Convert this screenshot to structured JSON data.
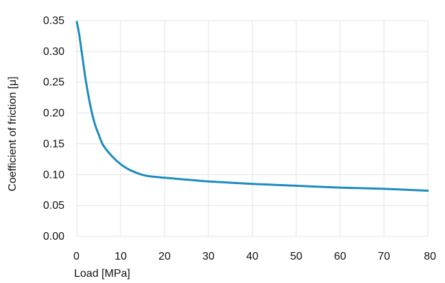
{
  "chart_data": {
    "type": "line",
    "xlabel": "Load [MPa]",
    "ylabel": "Coefficient of friction [μ]",
    "xlim": [
      0,
      80
    ],
    "ylim": [
      0,
      0.35
    ],
    "xticks": [
      0,
      10,
      20,
      30,
      40,
      50,
      60,
      70,
      80
    ],
    "xtick_labels": [
      "0",
      "10",
      "20",
      "30",
      "40",
      "50",
      "60",
      "70",
      "80"
    ],
    "yticks": [
      0,
      0.05,
      0.1,
      0.15,
      0.2,
      0.25,
      0.3,
      0.35
    ],
    "ytick_labels": [
      "0.00",
      "0.05",
      "0.10",
      "0.15",
      "0.20",
      "0.25",
      "0.30",
      "0.35"
    ],
    "grid": true,
    "legend": "none",
    "series": [
      {
        "color": "#1a8bbf",
        "x": [
          0,
          0.5,
          1,
          1.5,
          2,
          3,
          4,
          5,
          6,
          8,
          10,
          12,
          14,
          16,
          20,
          25,
          30,
          35,
          40,
          50,
          60,
          70,
          80
        ],
        "y": [
          0.348,
          0.33,
          0.305,
          0.28,
          0.255,
          0.215,
          0.185,
          0.165,
          0.148,
          0.13,
          0.117,
          0.108,
          0.102,
          0.098,
          0.095,
          0.092,
          0.089,
          0.087,
          0.085,
          0.082,
          0.079,
          0.077,
          0.074
        ]
      }
    ]
  }
}
